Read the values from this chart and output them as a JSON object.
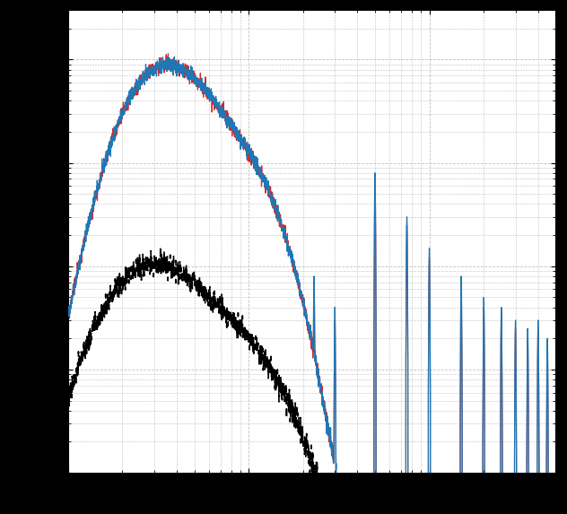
{
  "line1_color": "#1f77b4",
  "line2_color": "#d62728",
  "line3_color": "#000000",
  "background_color": "#ffffff",
  "fig_background": "#000000",
  "grid_color": "#c0c0c0",
  "figsize": [
    6.32,
    5.73
  ],
  "dpi": 100,
  "xlim": [
    1,
    500
  ],
  "ylim": [
    1e-10,
    3e-06
  ]
}
